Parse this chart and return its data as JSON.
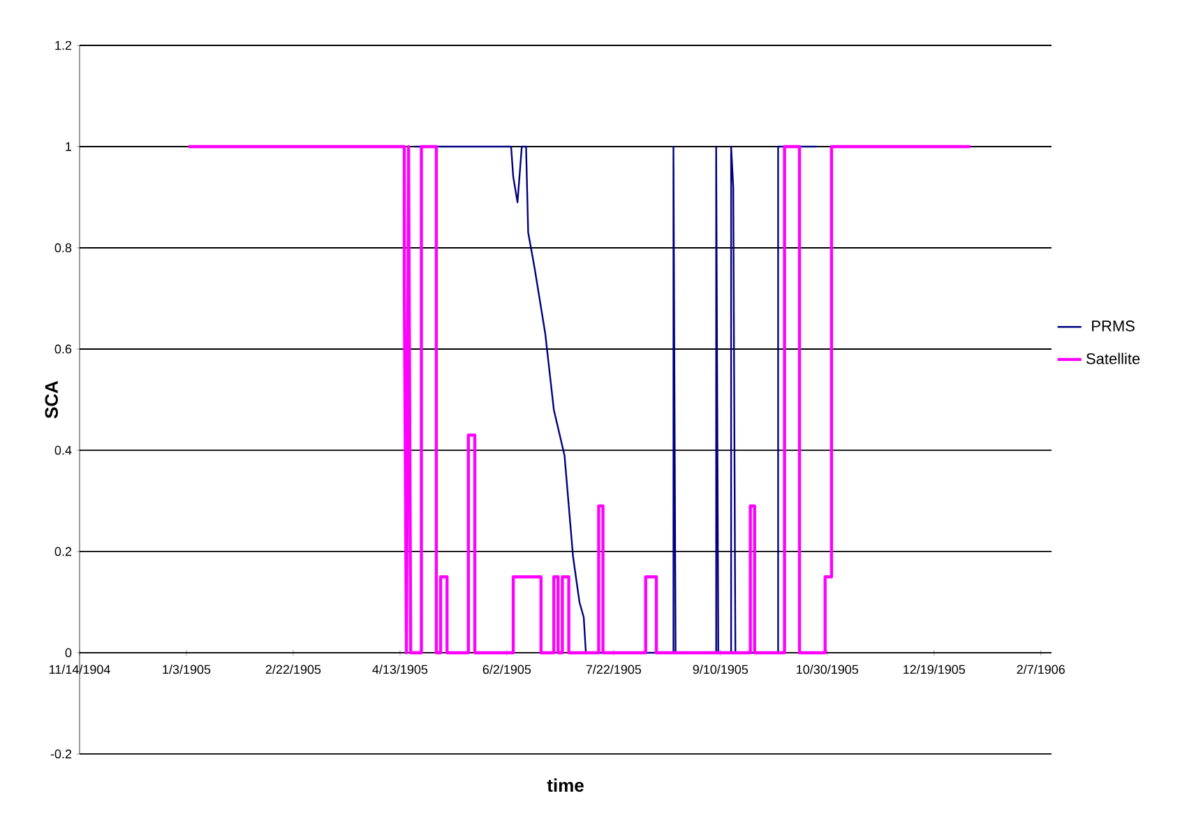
{
  "chart_data": {
    "type": "line",
    "xlabel": "time",
    "ylabel": "SCA",
    "x": [
      "1905-04-20",
      "1905-06-04",
      "1905-06-05",
      "1905-06-07",
      "1905-06-09",
      "1905-06-11",
      "1905-06-12",
      "1905-06-15",
      "1905-06-20",
      "1905-06-24",
      "1905-06-29",
      "1905-07-03",
      "1905-07-06",
      "1905-07-08",
      "1905-07-09",
      "1905-08-19",
      "1905-08-19",
      "1905-08-20",
      "1905-09-08",
      "1905-09-08",
      "1905-09-09",
      "1905-09-15",
      "1905-09-15",
      "1905-09-16",
      "1905-09-17",
      "1905-10-07",
      "1905-10-07",
      "1905-10-25"
    ],
    "series": [
      {
        "name": "PRMS",
        "color": "#000080",
        "values": [
          1,
          1,
          0.94,
          0.89,
          1,
          1,
          0.83,
          0.76,
          0.63,
          0.48,
          0.39,
          0.19,
          0.1,
          0.07,
          0,
          0,
          1,
          0,
          0,
          1,
          0,
          0,
          1,
          0.92,
          0,
          0,
          1,
          1
        ]
      },
      {
        "name": "Satellite",
        "color": "#ff00ff",
        "x": [
          "1905-01-04",
          "1905-04-15",
          "1905-04-15",
          "1905-04-16",
          "1905-04-17",
          "1905-04-18",
          "1905-04-23",
          "1905-04-23",
          "1905-04-30",
          "1905-04-30",
          "1905-05-02",
          "1905-05-02",
          "1905-05-05",
          "1905-05-05",
          "1905-05-15",
          "1905-05-15",
          "1905-05-18",
          "1905-05-18",
          "1905-06-05",
          "1905-06-05",
          "1905-06-18",
          "1905-06-18",
          "1905-06-24",
          "1905-06-24",
          "1905-06-26",
          "1905-06-26",
          "1905-06-28",
          "1905-06-28",
          "1905-07-01",
          "1905-07-01",
          "1905-07-15",
          "1905-07-15",
          "1905-07-17",
          "1905-07-17",
          "1905-08-06",
          "1905-08-06",
          "1905-08-11",
          "1905-08-11",
          "1905-09-24",
          "1905-09-24",
          "1905-09-26",
          "1905-09-26",
          "1905-10-10",
          "1905-10-10",
          "1905-10-17",
          "1905-10-17",
          "1905-10-29",
          "1905-10-29",
          "1905-11-01",
          "1905-11-01",
          "1906-01-05"
        ],
        "values": [
          1,
          1,
          0.74,
          0,
          1,
          0,
          0,
          1,
          1,
          0,
          0,
          0.15,
          0.15,
          0,
          0,
          0.43,
          0.43,
          0,
          0,
          0.15,
          0.15,
          0,
          0,
          0.15,
          0.15,
          0,
          0,
          0.15,
          0.15,
          0,
          0,
          0.29,
          0.29,
          0,
          0,
          0.15,
          0.15,
          0,
          0,
          0.29,
          0.29,
          0,
          0,
          1,
          1,
          0,
          0,
          0.15,
          0.15,
          1,
          1
        ]
      }
    ],
    "xlim": [
      "1904-11-14",
      "1906-02-12"
    ],
    "xticks": [
      {
        "value": "1904-11-14",
        "label": "11/14/1904"
      },
      {
        "value": "1905-01-03",
        "label": "1/3/1905"
      },
      {
        "value": "1905-02-22",
        "label": "2/22/1905"
      },
      {
        "value": "1905-04-13",
        "label": "4/13/1905"
      },
      {
        "value": "1905-06-02",
        "label": "6/2/1905"
      },
      {
        "value": "1905-07-22",
        "label": "7/22/1905"
      },
      {
        "value": "1905-09-10",
        "label": "9/10/1905"
      },
      {
        "value": "1905-10-30",
        "label": "10/30/1905"
      },
      {
        "value": "1905-12-19",
        "label": "12/19/1905"
      },
      {
        "value": "1906-02-07",
        "label": "2/7/1906"
      }
    ],
    "ylim": [
      -0.2,
      1.2
    ],
    "yticks": [
      -0.2,
      0,
      0.2,
      0.4,
      0.6,
      0.8,
      1,
      1.2
    ],
    "grid": "y",
    "legend": "right",
    "marker": "none",
    "line_style": "solid"
  }
}
